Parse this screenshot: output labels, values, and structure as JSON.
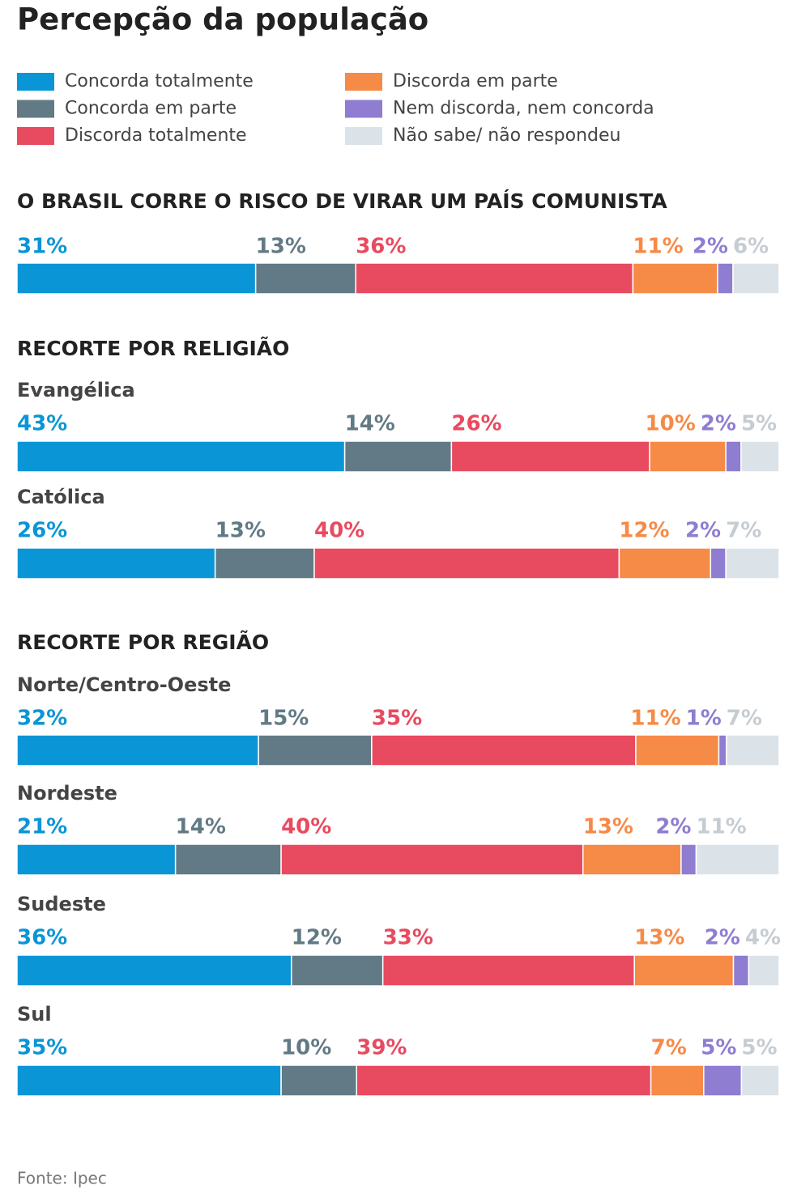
{
  "chart_data": {
    "type": "stacked-bar",
    "title": "Percepção da população",
    "legend": [
      {
        "name": "Concorda totalmente",
        "color": "#0a95d6"
      },
      {
        "name": "Concorda em parte",
        "color": "#627a85"
      },
      {
        "name": "Discorda totalmente",
        "color": "#e84a5f"
      },
      {
        "name": "Discorda em parte",
        "color": "#f68a47"
      },
      {
        "name": "Nem discorda, nem concorda",
        "color": "#8e7dd0"
      },
      {
        "name": "Não sabe/ não respondeu",
        "color": "#dce3e8"
      }
    ],
    "panels": [
      {
        "title": "O BRASIL CORRE O RISCO DE VIRAR UM PAÍS COMUNISTA",
        "categories": [
          null
        ],
        "series": [
          {
            "values": [
              31
            ],
            "value_labels": [
              "31%"
            ]
          },
          {
            "values": [
              13
            ],
            "value_labels": [
              "13%"
            ]
          },
          {
            "values": [
              36
            ],
            "value_labels": [
              "36%"
            ]
          },
          {
            "values": [
              11
            ],
            "value_labels": [
              "11%"
            ]
          },
          {
            "values": [
              2
            ],
            "value_labels": [
              "2%"
            ]
          },
          {
            "values": [
              6
            ],
            "value_labels": [
              "6%"
            ]
          }
        ]
      },
      {
        "title": "RECORTE POR RELIGIÃO",
        "categories": [
          "Evangélica",
          "Católica"
        ],
        "series": [
          {
            "values": [
              43,
              26
            ],
            "value_labels": [
              "43%",
              "26%"
            ]
          },
          {
            "values": [
              14,
              13
            ],
            "value_labels": [
              "14%",
              "13%"
            ]
          },
          {
            "values": [
              26,
              40
            ],
            "value_labels": [
              "26%",
              "40%"
            ]
          },
          {
            "values": [
              10,
              12
            ],
            "value_labels": [
              "10%",
              "12%"
            ]
          },
          {
            "values": [
              2,
              2
            ],
            "value_labels": [
              "2%",
              "2%"
            ]
          },
          {
            "values": [
              5,
              7
            ],
            "value_labels": [
              "5%",
              "7%"
            ]
          }
        ]
      },
      {
        "title": "RECORTE POR REGIÃO",
        "categories": [
          "Norte/Centro-Oeste",
          "Nordeste",
          "Sudeste",
          "Sul"
        ],
        "series": [
          {
            "values": [
              32,
              21,
              36,
              35
            ],
            "value_labels": [
              "32%",
              "21%",
              "36%",
              "35%"
            ]
          },
          {
            "values": [
              15,
              14,
              12,
              10
            ],
            "value_labels": [
              "15%",
              "14%",
              "12%",
              "10%"
            ]
          },
          {
            "values": [
              35,
              40,
              33,
              39
            ],
            "value_labels": [
              "35%",
              "40%",
              "33%",
              "39%"
            ]
          },
          {
            "values": [
              11,
              13,
              13,
              7
            ],
            "value_labels": [
              "11%",
              "13%",
              "13%",
              "7%"
            ]
          },
          {
            "values": [
              1,
              2,
              2,
              5
            ],
            "value_labels": [
              "1%",
              "2%",
              "2%",
              "5%"
            ]
          },
          {
            "values": [
              7,
              11,
              4,
              5
            ],
            "value_labels": [
              "7%",
              "11%",
              "4%",
              "5%"
            ]
          }
        ]
      }
    ],
    "source": "Fonte: Ipec"
  }
}
